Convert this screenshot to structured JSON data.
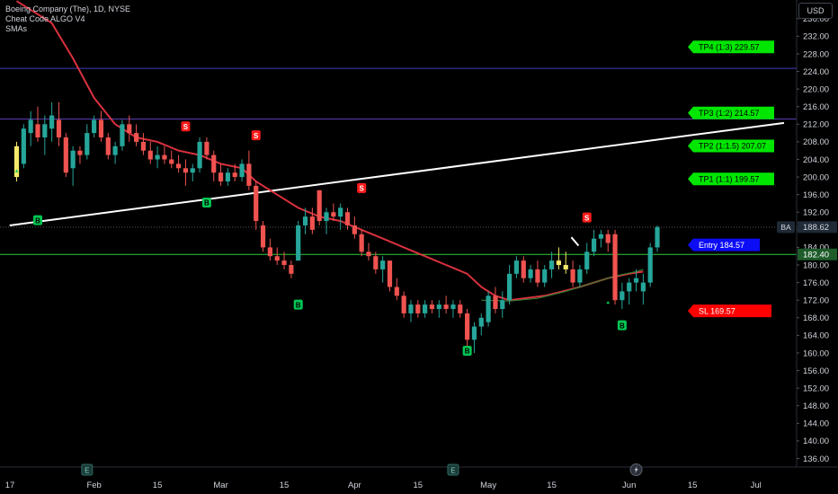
{
  "legend": {
    "symbol_line": "Boeing Company (The), 1D, NYSE",
    "indicator1": "Cheat Code ALGO V4",
    "indicator2": "SMAs"
  },
  "currency_button": "USD",
  "colors": {
    "up": "#26a69a",
    "down": "#ef5350",
    "highlight": "#f5e96a",
    "sma_red": "#f23645",
    "sma_green": "#2e7d32",
    "level_green": "#00e600",
    "entry_blue": "#0c0cf5",
    "sl_red": "#ff0000",
    "buy_badge": "#00c853",
    "sell_badge": "#ff1a1a"
  },
  "chart_data": {
    "type": "candlestick",
    "symbol": "BA",
    "last_price": 188.62,
    "y_axis": {
      "ticks": [
        236.0,
        232.0,
        228.0,
        224.0,
        220.0,
        216.0,
        212.0,
        208.0,
        204.0,
        200.0,
        196.0,
        192.0,
        188.0,
        184.0,
        180.0,
        176.0,
        172.0,
        168.0,
        164.0,
        160.0,
        156.0,
        152.0,
        148.0,
        144.0,
        140.0,
        136.0
      ],
      "visible_range": [
        134.5,
        238.5
      ]
    },
    "x_axis": {
      "ticks": [
        {
          "label": "17",
          "i": 0
        },
        {
          "label": "Feb",
          "i": 11
        },
        {
          "label": "15",
          "i": 20
        },
        {
          "label": "Mar",
          "i": 29
        },
        {
          "label": "15",
          "i": 38
        },
        {
          "label": "Apr",
          "i": 48
        },
        {
          "label": "15",
          "i": 57
        },
        {
          "label": "May",
          "i": 67
        },
        {
          "label": "15",
          "i": 76
        },
        {
          "label": "Jun",
          "i": 87
        },
        {
          "label": "15",
          "i": 96
        },
        {
          "label": "Jul",
          "i": 105
        }
      ]
    },
    "candles": [
      {
        "o": 200,
        "h": 208,
        "l": 199,
        "c": 207
      },
      {
        "o": 203,
        "h": 212,
        "l": 202,
        "c": 211
      },
      {
        "o": 210,
        "h": 215,
        "l": 207,
        "c": 213
      },
      {
        "o": 212,
        "h": 216,
        "l": 208,
        "c": 209
      },
      {
        "o": 209,
        "h": 214,
        "l": 205,
        "c": 212
      },
      {
        "o": 211,
        "h": 217,
        "l": 208,
        "c": 214
      },
      {
        "o": 213,
        "h": 217,
        "l": 207,
        "c": 209
      },
      {
        "o": 209,
        "h": 210,
        "l": 200,
        "c": 201
      },
      {
        "o": 202,
        "h": 207,
        "l": 198,
        "c": 206
      },
      {
        "o": 206,
        "h": 207,
        "l": 203,
        "c": 205
      },
      {
        "o": 205,
        "h": 212,
        "l": 204,
        "c": 210
      },
      {
        "o": 210,
        "h": 214,
        "l": 209,
        "c": 213
      },
      {
        "o": 213,
        "h": 215,
        "l": 208,
        "c": 209
      },
      {
        "o": 209,
        "h": 210,
        "l": 204,
        "c": 205
      },
      {
        "o": 205,
        "h": 208,
        "l": 203,
        "c": 207
      },
      {
        "o": 207,
        "h": 213,
        "l": 206,
        "c": 212
      },
      {
        "o": 212,
        "h": 214,
        "l": 208,
        "c": 210
      },
      {
        "o": 210,
        "h": 212,
        "l": 207,
        "c": 208
      },
      {
        "o": 208,
        "h": 210,
        "l": 205,
        "c": 206
      },
      {
        "o": 206,
        "h": 208,
        "l": 203,
        "c": 204
      },
      {
        "o": 204,
        "h": 207,
        "l": 202,
        "c": 205
      },
      {
        "o": 205,
        "h": 207,
        "l": 203,
        "c": 204
      },
      {
        "o": 204,
        "h": 206,
        "l": 202,
        "c": 203
      },
      {
        "o": 203,
        "h": 205,
        "l": 201,
        "c": 202
      },
      {
        "o": 202,
        "h": 204,
        "l": 198,
        "c": 201
      },
      {
        "o": 201,
        "h": 203,
        "l": 199,
        "c": 202
      },
      {
        "o": 202,
        "h": 209,
        "l": 201,
        "c": 208
      },
      {
        "o": 208,
        "h": 209,
        "l": 204,
        "c": 205
      },
      {
        "o": 205,
        "h": 206,
        "l": 199,
        "c": 201
      },
      {
        "o": 201,
        "h": 203,
        "l": 198,
        "c": 199
      },
      {
        "o": 199,
        "h": 202,
        "l": 198,
        "c": 201
      },
      {
        "o": 201,
        "h": 203,
        "l": 199,
        "c": 200
      },
      {
        "o": 200,
        "h": 204,
        "l": 199,
        "c": 203
      },
      {
        "o": 203,
        "h": 206,
        "l": 197,
        "c": 198
      },
      {
        "o": 198,
        "h": 199,
        "l": 188,
        "c": 190
      },
      {
        "o": 189,
        "h": 190,
        "l": 183,
        "c": 184
      },
      {
        "o": 184,
        "h": 186,
        "l": 181,
        "c": 182
      },
      {
        "o": 182,
        "h": 184,
        "l": 180,
        "c": 181
      },
      {
        "o": 181,
        "h": 183,
        "l": 179,
        "c": 180
      },
      {
        "o": 180,
        "h": 181,
        "l": 177,
        "c": 178
      },
      {
        "o": 181,
        "h": 190,
        "l": 181,
        "c": 189
      },
      {
        "o": 189,
        "h": 193,
        "l": 187,
        "c": 191
      },
      {
        "o": 191,
        "h": 193,
        "l": 187,
        "c": 188
      },
      {
        "o": 197,
        "h": 197,
        "l": 189,
        "c": 190
      },
      {
        "o": 190,
        "h": 193,
        "l": 187,
        "c": 192
      },
      {
        "o": 192,
        "h": 194,
        "l": 190,
        "c": 191
      },
      {
        "o": 191,
        "h": 194,
        "l": 188,
        "c": 193
      },
      {
        "o": 192,
        "h": 193,
        "l": 188,
        "c": 189
      },
      {
        "o": 189,
        "h": 191,
        "l": 186,
        "c": 187
      },
      {
        "o": 187,
        "h": 188,
        "l": 182,
        "c": 183
      },
      {
        "o": 183,
        "h": 185,
        "l": 181,
        "c": 182
      },
      {
        "o": 182,
        "h": 183,
        "l": 178,
        "c": 179
      },
      {
        "o": 179,
        "h": 182,
        "l": 176,
        "c": 181
      },
      {
        "o": 181,
        "h": 181,
        "l": 174,
        "c": 175
      },
      {
        "o": 175,
        "h": 177,
        "l": 172,
        "c": 173
      },
      {
        "o": 173,
        "h": 174,
        "l": 168,
        "c": 169
      },
      {
        "o": 169,
        "h": 172,
        "l": 167,
        "c": 171
      },
      {
        "o": 171,
        "h": 172,
        "l": 168,
        "c": 169
      },
      {
        "o": 169,
        "h": 172,
        "l": 168,
        "c": 171
      },
      {
        "o": 171,
        "h": 172,
        "l": 169,
        "c": 170
      },
      {
        "o": 170,
        "h": 172,
        "l": 168,
        "c": 171
      },
      {
        "o": 171,
        "h": 173,
        "l": 169,
        "c": 170
      },
      {
        "o": 170,
        "h": 172,
        "l": 168,
        "c": 171
      },
      {
        "o": 171,
        "h": 172,
        "l": 168,
        "c": 169
      },
      {
        "o": 169,
        "h": 170,
        "l": 161,
        "c": 163
      },
      {
        "o": 163,
        "h": 167,
        "l": 160,
        "c": 166
      },
      {
        "o": 166,
        "h": 169,
        "l": 164,
        "c": 168
      },
      {
        "o": 167,
        "h": 174,
        "l": 166,
        "c": 173
      },
      {
        "o": 173,
        "h": 175,
        "l": 169,
        "c": 170
      },
      {
        "o": 170,
        "h": 174,
        "l": 168,
        "c": 172
      },
      {
        "o": 172,
        "h": 180,
        "l": 171,
        "c": 178
      },
      {
        "o": 178,
        "h": 182,
        "l": 177,
        "c": 181
      },
      {
        "o": 181,
        "h": 182,
        "l": 176,
        "c": 177
      },
      {
        "o": 177,
        "h": 180,
        "l": 176,
        "c": 179
      },
      {
        "o": 179,
        "h": 181,
        "l": 175,
        "c": 176
      },
      {
        "o": 176,
        "h": 180,
        "l": 175,
        "c": 179
      },
      {
        "o": 179,
        "h": 183,
        "l": 177,
        "c": 181
      },
      {
        "o": 181,
        "h": 184,
        "l": 179,
        "c": 180
      },
      {
        "o": 180,
        "h": 183,
        "l": 178,
        "c": 179
      },
      {
        "o": 179,
        "h": 181,
        "l": 175,
        "c": 176
      },
      {
        "o": 176,
        "h": 180,
        "l": 175,
        "c": 179
      },
      {
        "o": 179,
        "h": 185,
        "l": 178,
        "c": 183
      },
      {
        "o": 183,
        "h": 188,
        "l": 182,
        "c": 186
      },
      {
        "o": 186,
        "h": 188,
        "l": 184,
        "c": 187
      },
      {
        "o": 187,
        "h": 188,
        "l": 183,
        "c": 185
      },
      {
        "o": 187,
        "h": 188,
        "l": 171,
        "c": 172
      },
      {
        "o": 172,
        "h": 176,
        "l": 170,
        "c": 174
      },
      {
        "o": 174,
        "h": 177,
        "l": 171,
        "c": 176
      },
      {
        "o": 176,
        "h": 179,
        "l": 174,
        "c": 177
      },
      {
        "o": 174,
        "h": 178,
        "l": 171,
        "c": 176
      },
      {
        "o": 176,
        "h": 185,
        "l": 175,
        "c": 184
      },
      {
        "o": 184,
        "h": 189,
        "l": 183,
        "c": 188.62
      }
    ],
    "highlight_candles": [
      0,
      77,
      78
    ],
    "sma_red": [
      [
        0,
        240
      ],
      [
        5,
        235
      ],
      [
        8,
        227
      ],
      [
        11,
        218
      ],
      [
        14,
        212
      ],
      [
        17,
        209
      ],
      [
        20,
        208
      ],
      [
        23,
        206
      ],
      [
        26,
        205
      ],
      [
        29,
        203
      ],
      [
        32,
        202
      ],
      [
        34,
        199
      ],
      [
        37,
        196
      ],
      [
        40,
        193
      ],
      [
        43,
        191
      ],
      [
        46,
        190
      ],
      [
        49,
        188
      ],
      [
        52,
        186
      ],
      [
        55,
        184
      ],
      [
        58,
        182
      ],
      [
        61,
        180
      ],
      [
        64,
        178
      ],
      [
        66,
        175
      ],
      [
        68,
        173
      ],
      [
        70,
        172
      ],
      [
        75,
        173
      ],
      [
        80,
        175
      ],
      [
        84,
        177
      ],
      [
        87,
        178
      ],
      [
        89,
        178.5
      ]
    ],
    "sma_green": [
      [
        66,
        172
      ],
      [
        70,
        171.8
      ],
      [
        74,
        172.4
      ],
      [
        78,
        174
      ],
      [
        82,
        176
      ],
      [
        85,
        177.5
      ],
      [
        88,
        178.5
      ],
      [
        89,
        179
      ]
    ],
    "trendline": {
      "from": [
        -1,
        189
      ],
      "to": [
        109,
        212.3
      ]
    },
    "levels": [
      {
        "name": "TP4 (1:3) 229.57",
        "price": 229.57,
        "kind": "tp"
      },
      {
        "name": "TP3 (1:2) 214.57",
        "price": 214.57,
        "kind": "tp"
      },
      {
        "name": "TP2 (1:1.5) 207.07",
        "price": 207.07,
        "kind": "tp"
      },
      {
        "name": "TP1 (1:1) 199.57",
        "price": 199.57,
        "kind": "tp"
      },
      {
        "name": "Entry 184.57",
        "price": 184.57,
        "kind": "entry"
      },
      {
        "name": "SL 169.57",
        "price": 169.57,
        "kind": "sl"
      }
    ],
    "horizontal_lines": [
      {
        "price": 224.7,
        "color": "#3f3fc0"
      },
      {
        "price": 213.2,
        "color": "#5a3fb0"
      },
      {
        "price": 182.4,
        "color": "#2ecc40"
      }
    ],
    "price_labels": [
      {
        "text": "188.62",
        "price": 188.62,
        "tag": "BA"
      },
      {
        "text": "182.40",
        "price": 182.4
      }
    ],
    "signals": [
      {
        "type": "S",
        "i": 24,
        "price": 211.5
      },
      {
        "type": "S",
        "i": 34,
        "price": 209.5
      },
      {
        "type": "S",
        "i": 49,
        "price": 197.5
      },
      {
        "type": "S",
        "i": 81,
        "price": 190.8
      },
      {
        "type": "B",
        "i": 3,
        "price": 190.2
      },
      {
        "type": "B",
        "i": 27,
        "price": 194.2
      },
      {
        "type": "B",
        "i": 40,
        "price": 171
      },
      {
        "type": "B",
        "i": 64,
        "price": 160.5
      },
      {
        "type": "B",
        "i": 86,
        "price": 166.3
      }
    ],
    "earnings_markers": [
      {
        "type": "E",
        "i": 10
      },
      {
        "type": "E",
        "i": 62
      }
    ],
    "dividend_marker": {
      "type": "bolt",
      "i": 88
    }
  }
}
